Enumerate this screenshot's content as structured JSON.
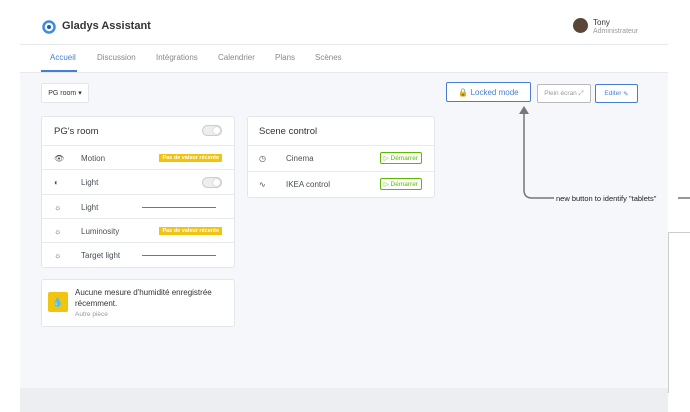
{
  "header": {
    "brand": "Gladys Assistant",
    "user_name": "Tony",
    "user_role": "Administrateur"
  },
  "nav": [
    "Accueil",
    "Discussion",
    "Intégrations",
    "Calendrier",
    "Plans",
    "Scènes"
  ],
  "toolbar": {
    "room_select": "PG room",
    "locked_mode": "Locked mode",
    "fullscreen": "Plein écran",
    "edit": "Editer"
  },
  "room_card": {
    "title": "PG's room",
    "rows": [
      {
        "label": "Motion",
        "status": "Pas de valeur récente"
      },
      {
        "label": "Light"
      },
      {
        "label": "Light"
      },
      {
        "label": "Luminosity",
        "status": "Pas de valeur récente"
      },
      {
        "label": "Target light"
      }
    ]
  },
  "humidity_card": {
    "message": "Aucune mesure d'humidité enregistrée récemment.",
    "room": "Autre pièce"
  },
  "scene_card": {
    "title": "Scene control",
    "rows": [
      {
        "label": "Cinema",
        "action": "Démarrer"
      },
      {
        "label": "IKEA control",
        "action": "Démarrer"
      }
    ]
  },
  "annotation": "new button to identify \"tablets\""
}
